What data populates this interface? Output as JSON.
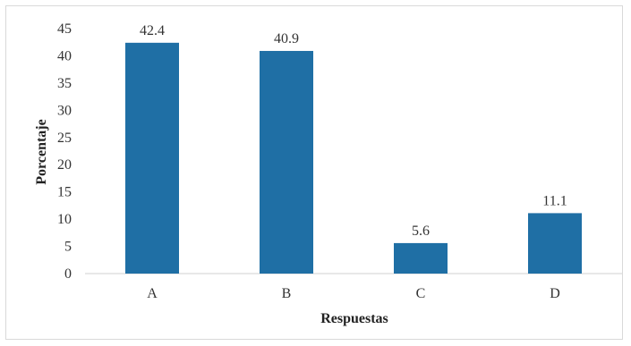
{
  "chart_data": {
    "type": "bar",
    "categories": [
      "A",
      "B",
      "C",
      "D"
    ],
    "values": [
      42.4,
      40.9,
      5.6,
      11.1
    ],
    "data_labels": [
      "42.4",
      "40.9",
      "5.6",
      "11.1"
    ],
    "xlabel": "Respuestas",
    "ylabel": "Porcentaje",
    "ylim": [
      0,
      45
    ],
    "yticks": [
      "0",
      "5",
      "10",
      "15",
      "20",
      "25",
      "30",
      "35",
      "40",
      "45"
    ],
    "grid": false,
    "bar_color": "#1f6fa5"
  }
}
